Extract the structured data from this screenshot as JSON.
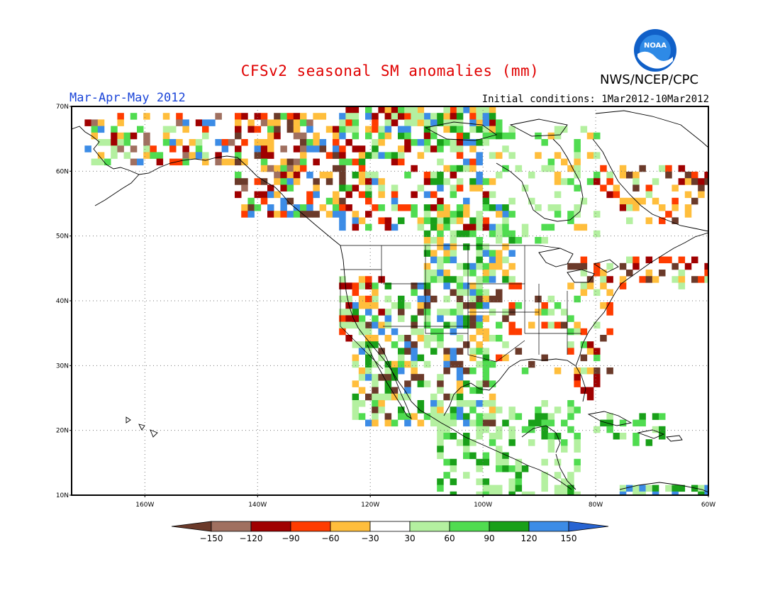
{
  "title": "CFSv2 seasonal SM anomalies (mm)",
  "period": "Mar-Apr-May 2012",
  "initial_conditions": "Initial conditions: 1Mar2012-10Mar2012",
  "agency": "NWS/NCEP/CPC",
  "logo_text": "NOAA",
  "map": {
    "lon_range": [
      -173,
      -60
    ],
    "lat_range": [
      10,
      70
    ],
    "lat_ticks": [
      {
        "value": 70,
        "label": "70N"
      },
      {
        "value": 60,
        "label": "60N"
      },
      {
        "value": 50,
        "label": "50N"
      },
      {
        "value": 40,
        "label": "40N"
      },
      {
        "value": 30,
        "label": "30N"
      },
      {
        "value": 20,
        "label": "20N"
      },
      {
        "value": 10,
        "label": "10N"
      }
    ],
    "lon_ticks": [
      {
        "value": -160,
        "label": "160W"
      },
      {
        "value": -140,
        "label": "140W"
      },
      {
        "value": -120,
        "label": "120W"
      },
      {
        "value": -100,
        "label": "100W"
      },
      {
        "value": -80,
        "label": "80W"
      },
      {
        "value": -60,
        "label": "60W"
      }
    ]
  },
  "legend": {
    "labels": [
      "−150",
      "−120",
      "−90",
      "−60",
      "−30",
      "30",
      "60",
      "90",
      "120",
      "150"
    ],
    "colors": [
      "#6b3a2a",
      "#a07060",
      "#a00000",
      "#ff3c00",
      "#ffbe3c",
      "#ffffff",
      "#b4f0a0",
      "#50dc50",
      "#19a019",
      "#3c8ce6",
      "#2864d2"
    ]
  }
}
